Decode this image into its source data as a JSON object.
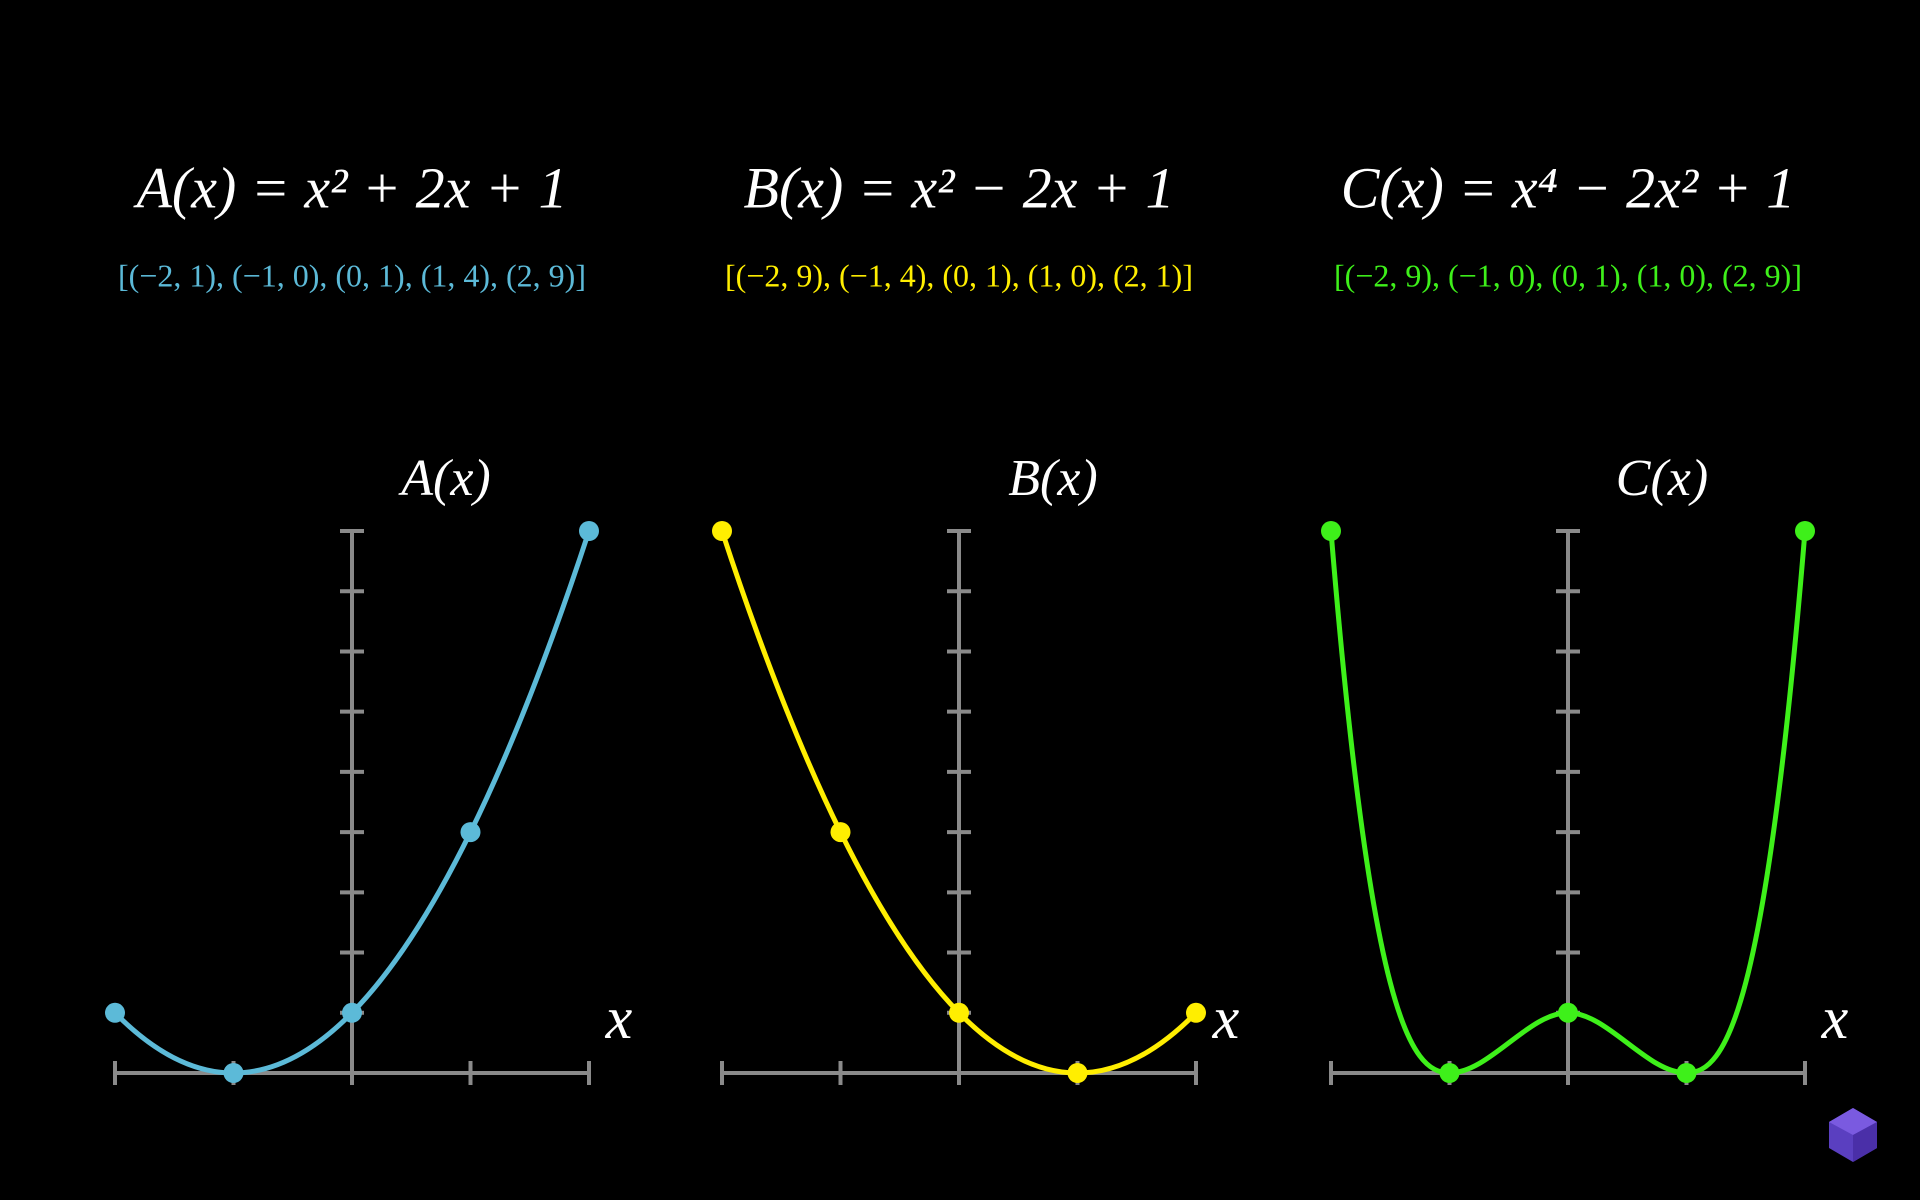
{
  "chart_data": [
    {
      "type": "line",
      "title": "A(x) = x² + 2x + 1",
      "subtitle": "[(−2, 1), (−1, 0), (0, 1), (1, 4), (2, 9)]",
      "x": [
        -2,
        -1,
        0,
        1,
        2
      ],
      "series": [
        {
          "name": "A(x)",
          "color": "#5cbad8",
          "values": [
            1,
            0,
            1,
            4,
            9
          ]
        }
      ],
      "xlabel": "x",
      "xlim": [
        -2,
        2
      ],
      "ylim": [
        0,
        9
      ],
      "xticks": [
        -2,
        -1,
        0,
        1,
        2
      ],
      "yticks": [
        0,
        1,
        2,
        3,
        4,
        5,
        6,
        7,
        8,
        9
      ]
    },
    {
      "type": "line",
      "title": "B(x) = x² − 2x + 1",
      "subtitle": "[(−2, 9), (−1, 4), (0, 1), (1, 0), (2, 1)]",
      "x": [
        -2,
        -1,
        0,
        1,
        2
      ],
      "series": [
        {
          "name": "B(x)",
          "color": "#ffee00",
          "values": [
            9,
            4,
            1,
            0,
            1
          ]
        }
      ],
      "xlabel": "x",
      "xlim": [
        -2,
        2
      ],
      "ylim": [
        0,
        9
      ],
      "xticks": [
        -2,
        -1,
        0,
        1,
        2
      ],
      "yticks": [
        0,
        1,
        2,
        3,
        4,
        5,
        6,
        7,
        8,
        9
      ]
    },
    {
      "type": "line",
      "title": "C(x) = x⁴ − 2x² + 1",
      "subtitle": "[(−2, 9), (−1, 0), (0, 1), (1, 0), (2, 9)]",
      "x": [
        -2,
        -1,
        0,
        1,
        2
      ],
      "series": [
        {
          "name": "C(x)",
          "color": "#3ef01a",
          "values": [
            9,
            0,
            1,
            0,
            9
          ]
        }
      ],
      "xlabel": "x",
      "xlim": [
        -2,
        2
      ],
      "ylim": [
        0,
        9
      ],
      "xticks": [
        -2,
        -1,
        0,
        1,
        2
      ],
      "yticks": [
        0,
        1,
        2,
        3,
        4,
        5,
        6,
        7,
        8,
        9
      ]
    }
  ]
}
